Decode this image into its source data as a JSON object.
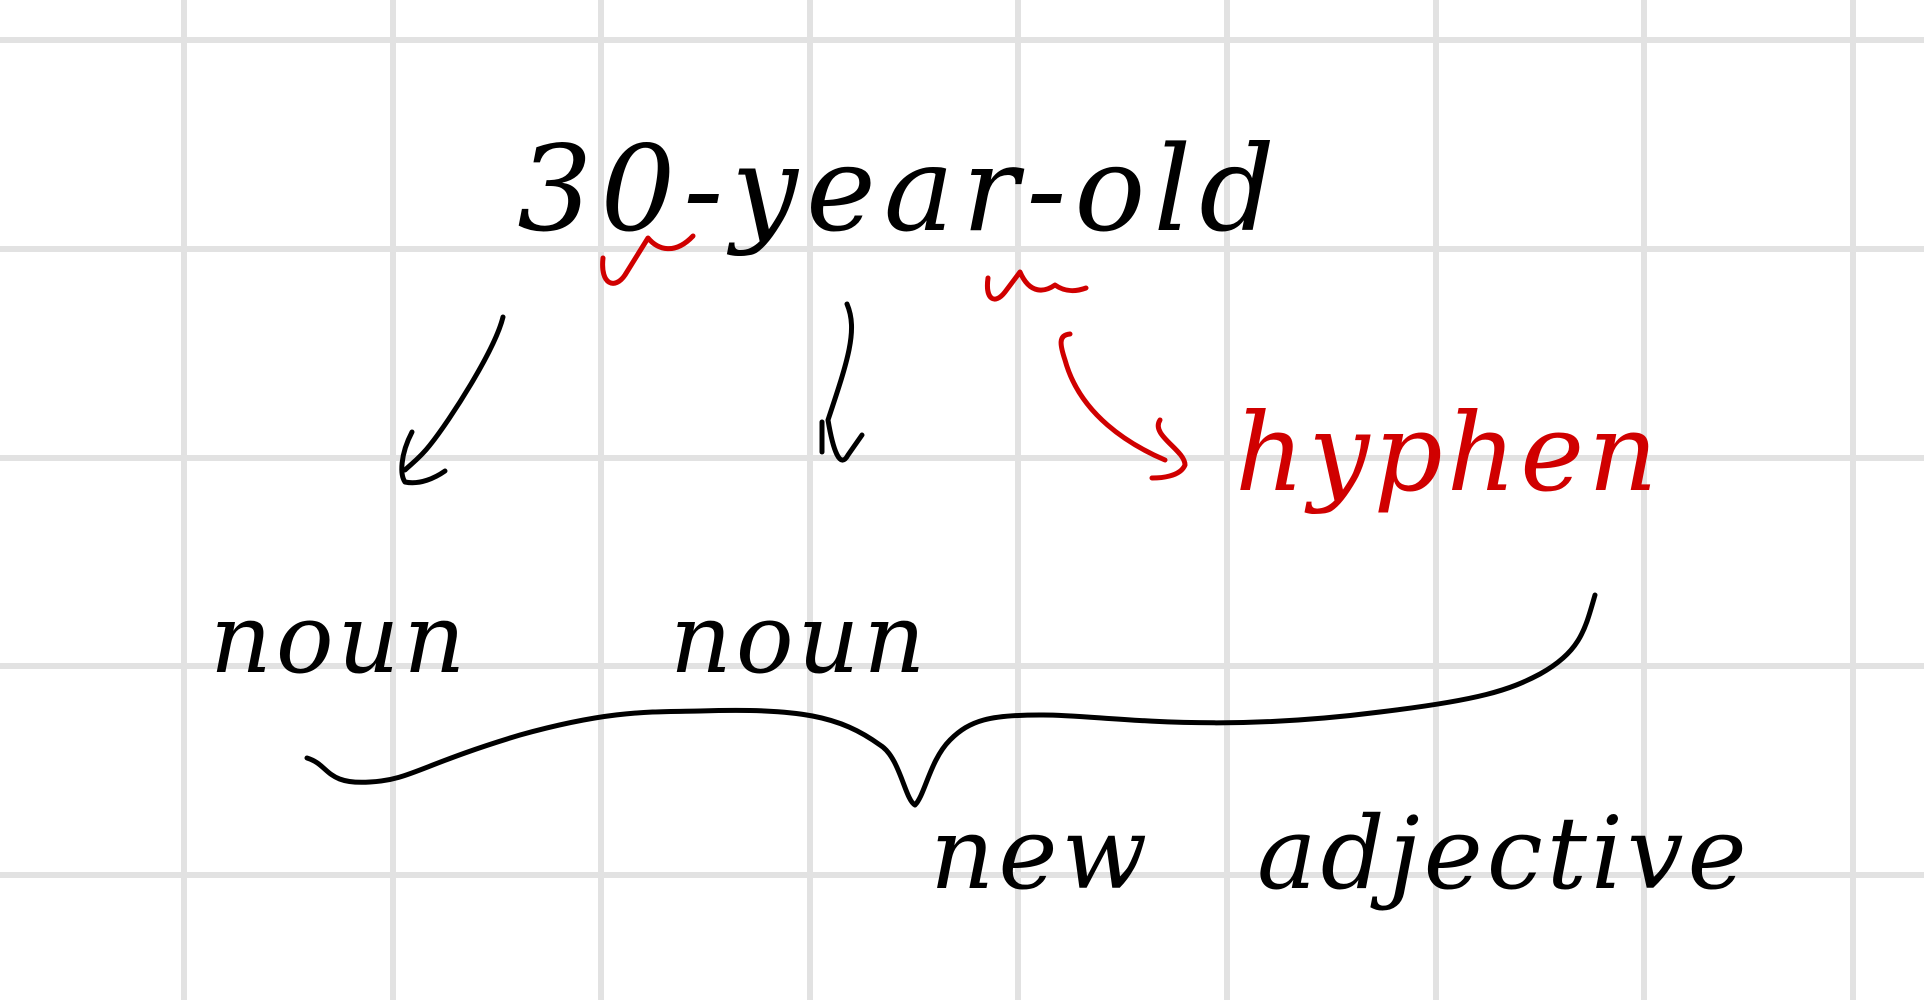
{
  "phrase": "30-year-old",
  "part_labels": [
    "noun",
    "noun"
  ],
  "hyphen_label": "hyphen",
  "result_label": "new adjective"
}
